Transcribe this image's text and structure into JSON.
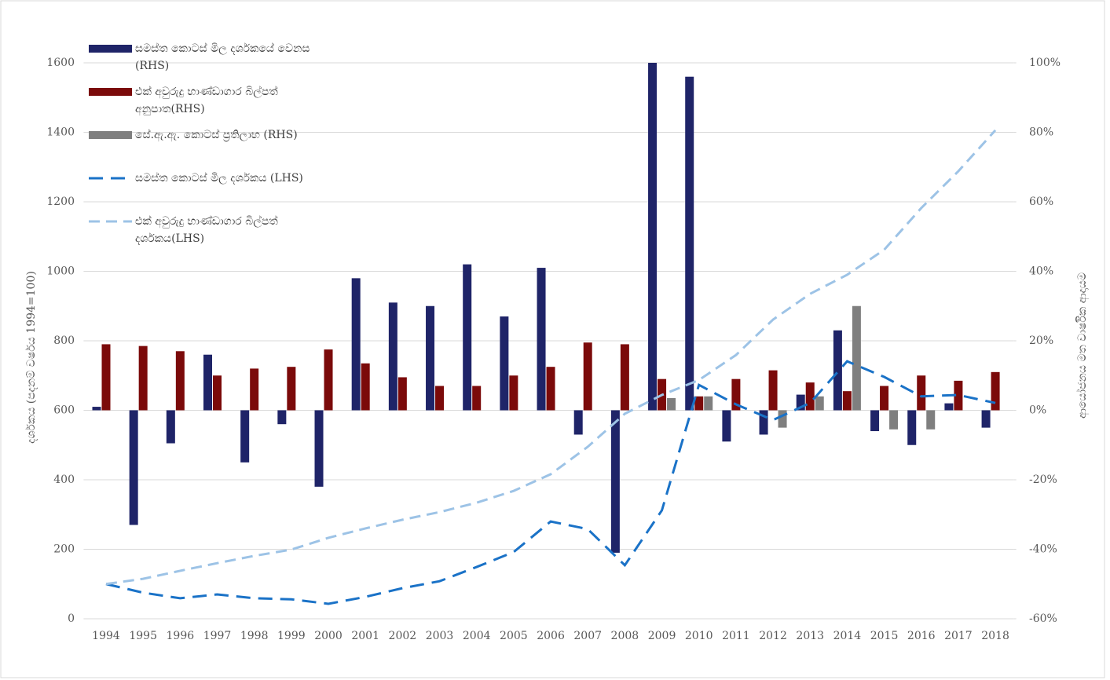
{
  "chart_data": {
    "type": "bar-line",
    "y_label": "දර්ශකය (පදනම් වර්ෂය 1994=100)",
    "y2_label": "ආයෝජනය මත වාර්ෂික ආදායම",
    "categories": [
      "1994",
      "1995",
      "1996",
      "1997",
      "1998",
      "1999",
      "2000",
      "2001",
      "2002",
      "2003",
      "2004",
      "2005",
      "2006",
      "2007",
      "2008",
      "2009",
      "2010",
      "2011",
      "2012",
      "2013",
      "2014",
      "2015",
      "2016",
      "2017",
      "2018"
    ],
    "ylim": [
      0,
      1600
    ],
    "yticks": [
      0,
      200,
      400,
      600,
      800,
      1000,
      1200,
      1400,
      1600
    ],
    "y2lim": [
      -60,
      100
    ],
    "y2ticks": [
      {
        "value": -60,
        "label": "-60%"
      },
      {
        "value": -40,
        "label": "-40%"
      },
      {
        "value": -20,
        "label": "-20%"
      },
      {
        "value": 0,
        "label": "0%"
      },
      {
        "value": 20,
        "label": "20%"
      },
      {
        "value": 40,
        "label": "40%"
      },
      {
        "value": 60,
        "label": "60%"
      },
      {
        "value": 80,
        "label": "80%"
      },
      {
        "value": 100,
        "label": "100%"
      }
    ],
    "grid": true,
    "legend": "upper left",
    "series": [
      {
        "name": "සමස්ත කොටස් මිල දර්ශකයේ වෙනස (RHS)",
        "type": "bar",
        "axis": "y2",
        "color": "#1f2468",
        "values": [
          1,
          -33,
          -9.5,
          16,
          -15,
          -4,
          -22,
          38,
          31,
          30,
          42,
          27,
          41,
          -7,
          -41,
          100,
          96,
          -9,
          -7,
          4.5,
          23,
          -6,
          -10,
          2,
          -5
        ]
      },
      {
        "name": "එක් අවුරුදු භාණ්ඩාගාර බිල්පත් අනුපාත(RHS)",
        "type": "bar",
        "axis": "y2",
        "color": "#7b0a0a",
        "values": [
          19,
          18.5,
          17,
          10,
          12,
          12.5,
          17.5,
          13.5,
          9.5,
          7,
          7,
          10,
          12.5,
          19.5,
          19,
          9,
          4,
          9,
          11.5,
          8,
          5.5,
          7,
          10,
          8.5,
          11
        ]
      },
      {
        "name": "සේ.ඇ.ඇ. කොටස් ප්‍රතිලාභ (RHS)",
        "type": "bar",
        "axis": "y2",
        "color": "#7f7f7f",
        "values": [
          null,
          null,
          null,
          null,
          null,
          null,
          null,
          null,
          null,
          null,
          null,
          null,
          null,
          null,
          null,
          3.5,
          4,
          null,
          -5,
          4,
          30,
          -5.5,
          -5.5,
          null,
          null
        ]
      },
      {
        "name": "සමස්ත කොටස් මිල දර්ශකය (LHS)",
        "type": "line",
        "axis": "y",
        "color": "#1a72c7",
        "values": [
          100,
          75,
          59,
          70,
          59,
          56,
          43,
          63,
          88,
          108,
          149,
          192,
          280,
          258,
          154,
          312,
          673,
          617,
          572,
          621,
          741,
          696,
          640,
          644,
          621
        ]
      },
      {
        "name": "එක් අවුරුදු භාණ්ඩාගාර බිල්පත් දර්ශකය(LHS)",
        "type": "line",
        "axis": "y",
        "color": "#9dc3e6",
        "values": [
          100,
          115,
          138,
          160,
          181,
          199,
          233,
          260,
          285,
          307,
          334,
          368,
          416,
          495,
          590,
          644,
          687,
          759,
          861,
          935,
          990,
          1062,
          1182,
          1288,
          1406
        ]
      }
    ]
  }
}
